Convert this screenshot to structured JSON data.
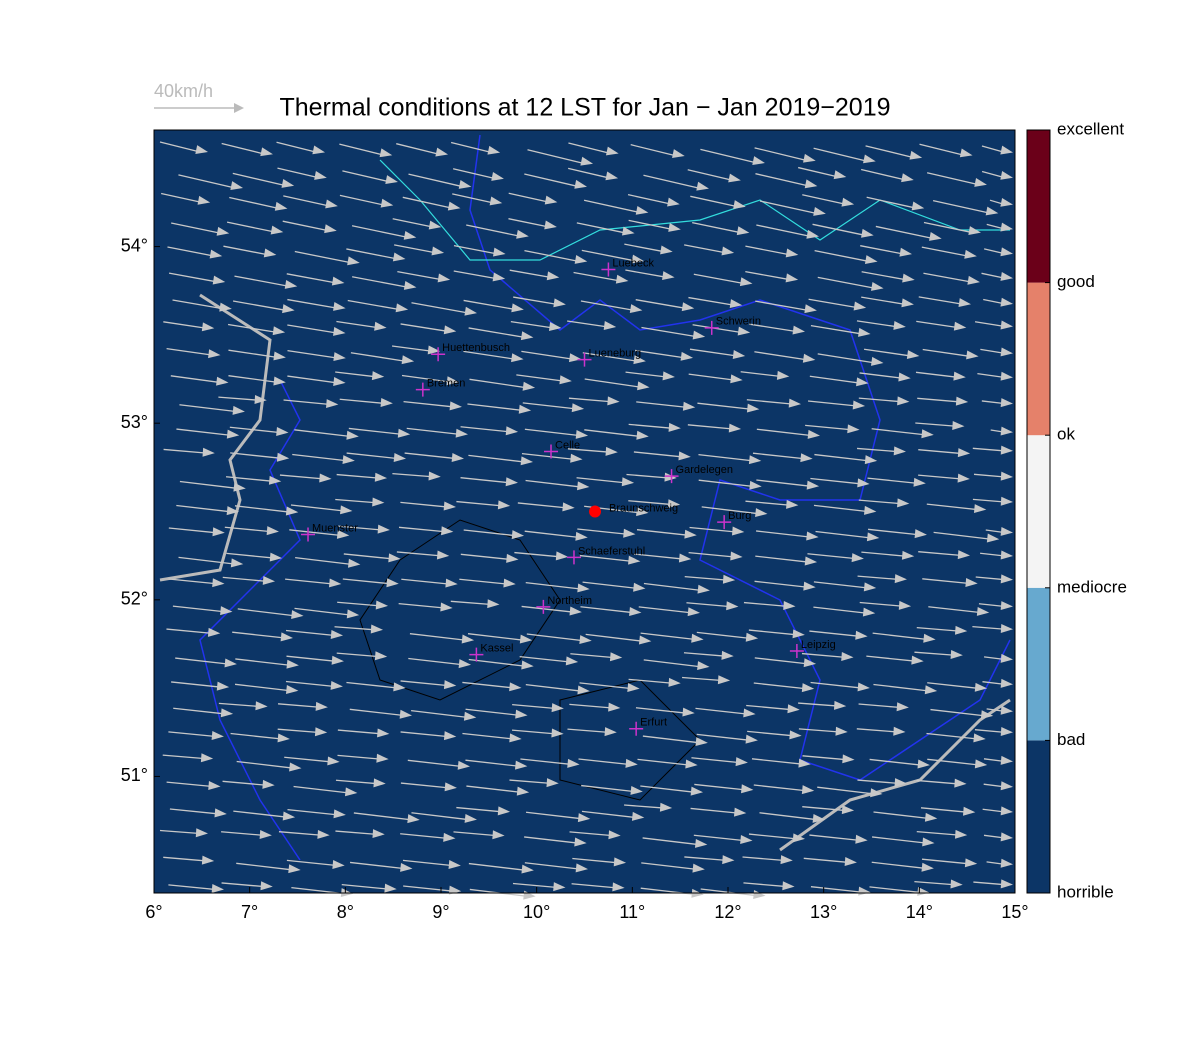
{
  "title": "Thermal conditions at 12 LST for Jan − Jan  2019−2019",
  "wind_legend": "40km/h",
  "map": {
    "background": "#0c3566",
    "xlim": [
      6,
      15
    ],
    "ylim": [
      50.34,
      54.66
    ],
    "xticks": [
      {
        "value": 6,
        "label": "6°"
      },
      {
        "value": 7,
        "label": "7°"
      },
      {
        "value": 8,
        "label": "8°"
      },
      {
        "value": 9,
        "label": "9°"
      },
      {
        "value": 10,
        "label": "10°"
      },
      {
        "value": 11,
        "label": "11°"
      },
      {
        "value": 12,
        "label": "12°"
      },
      {
        "value": 13,
        "label": "13°"
      },
      {
        "value": 14,
        "label": "14°"
      },
      {
        "value": 15,
        "label": "15°"
      }
    ],
    "yticks": [
      {
        "value": 51,
        "label": "51°"
      },
      {
        "value": 52,
        "label": "52°"
      },
      {
        "value": 53,
        "label": "53°"
      },
      {
        "value": 54,
        "label": "54°"
      }
    ]
  },
  "cities": [
    {
      "name": "Luebeck",
      "lon": 10.75,
      "lat": 53.87
    },
    {
      "name": "Schwerin",
      "lon": 11.83,
      "lat": 53.54
    },
    {
      "name": "Huettenbusch",
      "lon": 8.97,
      "lat": 53.39
    },
    {
      "name": "Lueneburg",
      "lon": 10.5,
      "lat": 53.36
    },
    {
      "name": "Bremen",
      "lon": 8.81,
      "lat": 53.19
    },
    {
      "name": "Celle",
      "lon": 10.15,
      "lat": 52.84
    },
    {
      "name": "Gardelegen",
      "lon": 11.41,
      "lat": 52.7
    },
    {
      "name": "Burg",
      "lon": 11.96,
      "lat": 52.44
    },
    {
      "name": "Muenster",
      "lon": 7.61,
      "lat": 52.37
    },
    {
      "name": "Schaeferstuhl",
      "lon": 10.39,
      "lat": 52.24
    },
    {
      "name": "Northeim",
      "lon": 10.07,
      "lat": 51.96
    },
    {
      "name": "Kassel",
      "lon": 9.37,
      "lat": 51.69
    },
    {
      "name": "Leipzig",
      "lon": 12.72,
      "lat": 51.71
    },
    {
      "name": "Erfurt",
      "lon": 11.04,
      "lat": 51.27
    }
  ],
  "site": {
    "name": "Braunschweig",
    "lon": 10.61,
    "lat": 52.5,
    "color": "#ff0000"
  },
  "colorbar": {
    "labels": [
      "horrible",
      "bad",
      "mediocre",
      "ok",
      "good",
      "excellent"
    ],
    "colors": [
      "#0c3566",
      "#67a9cf",
      "#f4f4f4",
      "#e5816a",
      "#6b0019"
    ]
  }
}
